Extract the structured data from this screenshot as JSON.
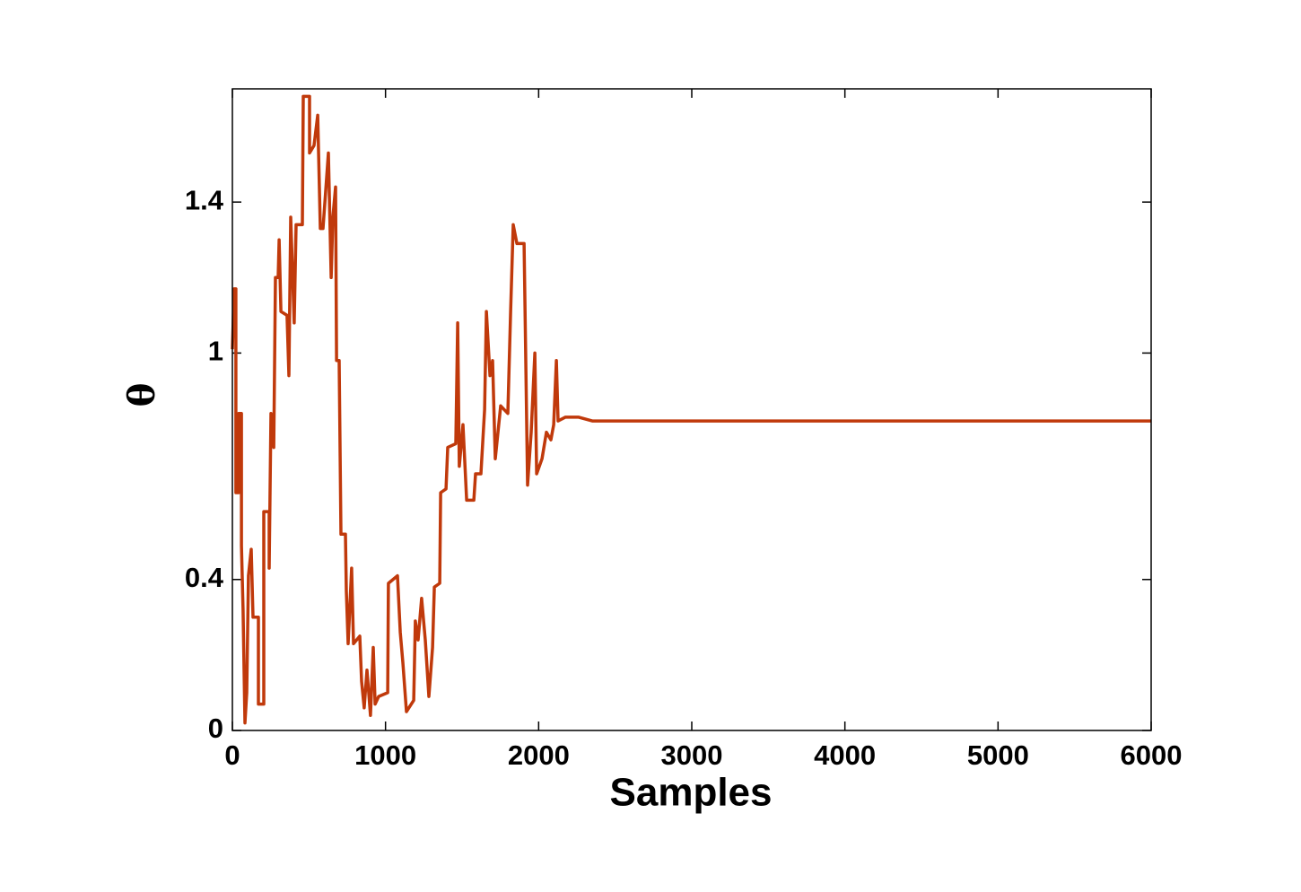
{
  "chart_data": {
    "type": "line",
    "xlabel": "Samples",
    "ylabel": "θ",
    "x": [
      0,
      12,
      23,
      23,
      41,
      41,
      59,
      59,
      70,
      82,
      94,
      105,
      123,
      135,
      170,
      170,
      205,
      205,
      240,
      240,
      252,
      270,
      281,
      299,
      305,
      317,
      357,
      369,
      381,
      404,
      416,
      457,
      463,
      504,
      504,
      533,
      557,
      574,
      592,
      627,
      645,
      656,
      674,
      680,
      697,
      709,
      738,
      744,
      756,
      779,
      791,
      832,
      844,
      861,
      879,
      902,
      920,
      932,
      955,
      1014,
      1019,
      1078,
      1096,
      1113,
      1137,
      1184,
      1195,
      1213,
      1236,
      1260,
      1283,
      1307,
      1319,
      1354,
      1360,
      1395,
      1406,
      1459,
      1471,
      1482,
      1506,
      1530,
      1577,
      1588,
      1623,
      1647,
      1659,
      1682,
      1699,
      1717,
      1752,
      1799,
      1817,
      1834,
      1858,
      1905,
      1928,
      1951,
      1975,
      1987,
      2022,
      2051,
      2080,
      2098,
      2116,
      2127,
      2174,
      2262,
      2350,
      2467,
      3000,
      4000,
      5000,
      6000
    ],
    "series": [
      {
        "name": "θ",
        "color": "#c0390b",
        "values": [
          1.01,
          1.17,
          1.17,
          0.63,
          0.63,
          0.84,
          0.84,
          0.49,
          0.32,
          0.02,
          0.1,
          0.41,
          0.48,
          0.3,
          0.3,
          0.07,
          0.07,
          0.58,
          0.58,
          0.43,
          0.84,
          0.75,
          1.2,
          1.2,
          1.3,
          1.11,
          1.1,
          0.94,
          1.36,
          1.08,
          1.34,
          1.34,
          1.68,
          1.68,
          1.53,
          1.55,
          1.63,
          1.33,
          1.33,
          1.53,
          1.2,
          1.36,
          1.44,
          0.98,
          0.98,
          0.52,
          0.52,
          0.37,
          0.23,
          0.43,
          0.23,
          0.25,
          0.13,
          0.06,
          0.16,
          0.04,
          0.22,
          0.07,
          0.09,
          0.1,
          0.39,
          0.41,
          0.26,
          0.18,
          0.05,
          0.08,
          0.29,
          0.24,
          0.35,
          0.24,
          0.09,
          0.22,
          0.38,
          0.39,
          0.63,
          0.64,
          0.75,
          0.76,
          1.08,
          0.7,
          0.81,
          0.61,
          0.61,
          0.68,
          0.68,
          0.85,
          1.11,
          0.94,
          0.98,
          0.72,
          0.86,
          0.84,
          1.11,
          1.34,
          1.29,
          1.29,
          0.65,
          0.79,
          1.0,
          0.68,
          0.72,
          0.79,
          0.77,
          0.81,
          0.98,
          0.82,
          0.83,
          0.83,
          0.82,
          0.82,
          0.82,
          0.82,
          0.82,
          0.82
        ]
      }
    ],
    "xlim": [
      0,
      6000
    ],
    "xticks": [
      0,
      1000,
      2000,
      3000,
      4000,
      5000,
      6000
    ],
    "ylim": [
      0,
      1.7
    ],
    "yticks": [
      0,
      0.4,
      1,
      1.4
    ],
    "grid": false
  }
}
